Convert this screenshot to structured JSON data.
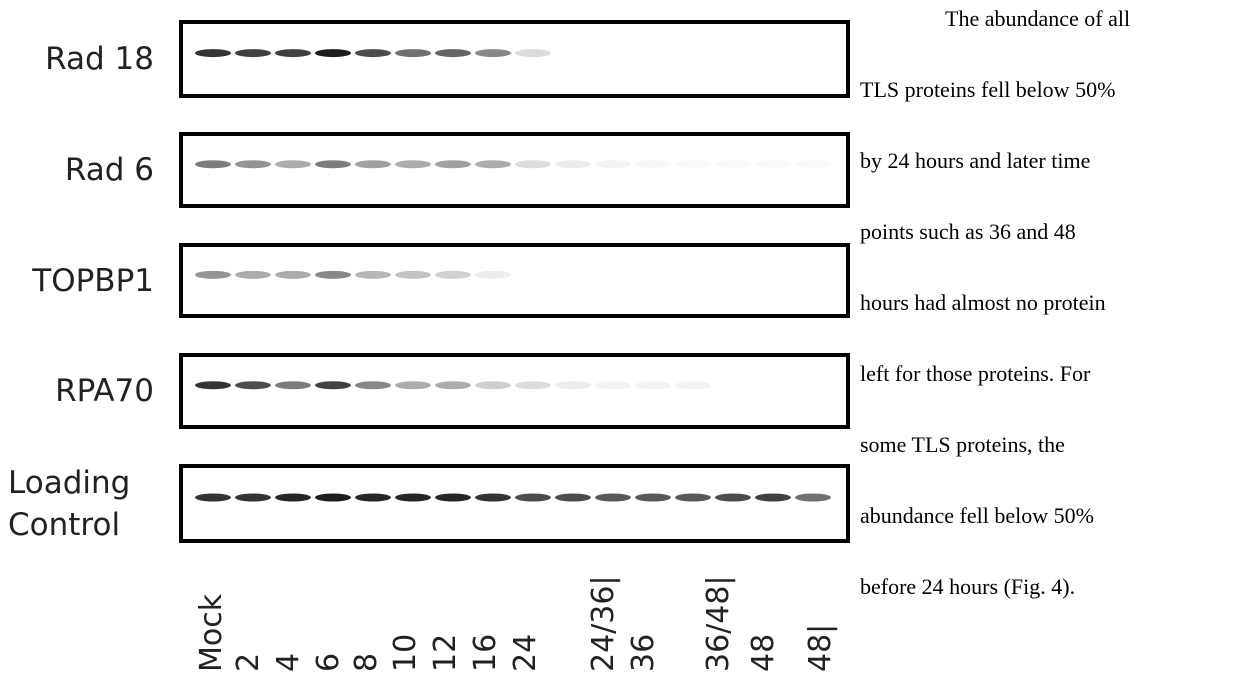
{
  "blot": {
    "rows": [
      {
        "label": "Rad 18"
      },
      {
        "label": "Rad 6"
      },
      {
        "label": "TOPBP1"
      },
      {
        "label": "RPA70"
      },
      {
        "label": "Loading Control"
      }
    ],
    "lanes": [
      "Mock",
      "2",
      "4",
      "6",
      "8",
      "10",
      "12",
      "16",
      "24",
      "24/36|",
      "36",
      "36/48|",
      "48",
      "48|"
    ]
  },
  "text": {
    "lines": [
      "The abundance of all",
      "TLS proteins fell below 50%",
      "by 24 hours and later time",
      "points such as 36 and 48",
      "hours had almost no protein",
      "left for those proteins. For",
      "some TLS proteins, the",
      "abundance fell below 50%",
      "before 24 hours (Fig. 4)."
    ]
  }
}
